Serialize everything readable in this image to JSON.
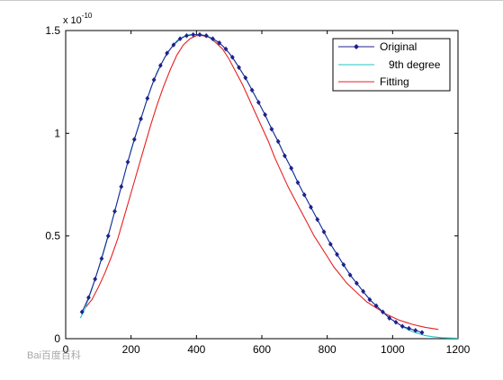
{
  "chart_data": {
    "type": "line",
    "title": "",
    "xlabel": "",
    "ylabel": "",
    "xlim": [
      0,
      1200
    ],
    "ylim": [
      0,
      1.5
    ],
    "y_multiplier_label": "x 10",
    "y_multiplier_exponent": "-10",
    "x_ticks": [
      "0",
      "200",
      "400",
      "600",
      "800",
      "1000",
      "1200"
    ],
    "x_tick_values": [
      0,
      200,
      400,
      600,
      800,
      1000,
      1200
    ],
    "y_ticks": [
      "0",
      "0.5",
      "1",
      "1.5"
    ],
    "y_tick_values": [
      0,
      0.5,
      1,
      1.5
    ],
    "grid": false,
    "legend_position": "top-right",
    "series": [
      {
        "name": "Original",
        "color": "#1f1f8f",
        "marker": "diamond",
        "x": [
          50,
          70,
          90,
          110,
          130,
          150,
          170,
          190,
          210,
          230,
          250,
          270,
          290,
          310,
          330,
          350,
          370,
          390,
          410,
          430,
          450,
          470,
          490,
          510,
          530,
          550,
          570,
          590,
          610,
          630,
          650,
          670,
          690,
          710,
          730,
          750,
          770,
          790,
          810,
          830,
          850,
          870,
          890,
          910,
          930,
          950,
          970,
          990,
          1010,
          1030,
          1050,
          1070,
          1090
        ],
        "y": [
          0.13,
          0.2,
          0.29,
          0.39,
          0.5,
          0.62,
          0.74,
          0.86,
          0.97,
          1.07,
          1.17,
          1.26,
          1.33,
          1.39,
          1.43,
          1.46,
          1.475,
          1.48,
          1.48,
          1.475,
          1.46,
          1.44,
          1.41,
          1.37,
          1.32,
          1.27,
          1.21,
          1.15,
          1.09,
          1.02,
          0.96,
          0.89,
          0.83,
          0.76,
          0.7,
          0.64,
          0.58,
          0.52,
          0.46,
          0.41,
          0.36,
          0.31,
          0.27,
          0.23,
          0.19,
          0.16,
          0.13,
          0.1,
          0.08,
          0.06,
          0.05,
          0.04,
          0.03
        ]
      },
      {
        "name": "9th degree",
        "color": "#1fc4c4",
        "x": [
          45,
          60,
          80,
          100,
          120,
          140,
          160,
          180,
          200,
          220,
          240,
          260,
          280,
          300,
          320,
          340,
          360,
          380,
          400,
          420,
          440,
          460,
          480,
          500,
          520,
          540,
          560,
          580,
          600,
          620,
          640,
          660,
          680,
          700,
          720,
          740,
          760,
          780,
          800,
          820,
          840,
          860,
          880,
          900,
          920,
          940,
          960,
          980,
          1000,
          1020,
          1040,
          1060,
          1080,
          1100,
          1120,
          1150,
          1180,
          1200
        ],
        "y": [
          0.1,
          0.15,
          0.24,
          0.34,
          0.45,
          0.56,
          0.68,
          0.8,
          0.92,
          1.02,
          1.12,
          1.22,
          1.3,
          1.36,
          1.41,
          1.45,
          1.47,
          1.48,
          1.48,
          1.478,
          1.465,
          1.45,
          1.425,
          1.39,
          1.345,
          1.295,
          1.24,
          1.18,
          1.12,
          1.055,
          0.99,
          0.925,
          0.86,
          0.795,
          0.73,
          0.67,
          0.61,
          0.55,
          0.49,
          0.435,
          0.385,
          0.335,
          0.29,
          0.25,
          0.21,
          0.175,
          0.145,
          0.115,
          0.09,
          0.07,
          0.05,
          0.035,
          0.025,
          0.015,
          0.01,
          0.005,
          0.003,
          0.002
        ]
      },
      {
        "name": "Fitting",
        "color": "#e82020",
        "x": [
          60,
          80,
          100,
          120,
          140,
          160,
          180,
          200,
          220,
          240,
          260,
          280,
          300,
          320,
          340,
          360,
          380,
          400,
          420,
          440,
          460,
          480,
          500,
          520,
          540,
          560,
          580,
          600,
          620,
          640,
          660,
          680,
          700,
          720,
          740,
          760,
          780,
          800,
          820,
          840,
          860,
          880,
          900,
          920,
          940,
          960,
          980,
          1000,
          1020,
          1040,
          1060,
          1080,
          1100,
          1120,
          1140
        ],
        "y": [
          0.15,
          0.19,
          0.25,
          0.32,
          0.4,
          0.49,
          0.6,
          0.71,
          0.82,
          0.93,
          1.04,
          1.14,
          1.23,
          1.31,
          1.38,
          1.43,
          1.46,
          1.475,
          1.475,
          1.465,
          1.44,
          1.41,
          1.36,
          1.3,
          1.24,
          1.17,
          1.1,
          1.03,
          0.96,
          0.88,
          0.81,
          0.74,
          0.68,
          0.62,
          0.56,
          0.5,
          0.45,
          0.4,
          0.35,
          0.31,
          0.27,
          0.24,
          0.21,
          0.18,
          0.16,
          0.14,
          0.12,
          0.105,
          0.09,
          0.08,
          0.07,
          0.062,
          0.055,
          0.05,
          0.045
        ]
      }
    ]
  },
  "watermark": {
    "text": "Bai百度百科"
  }
}
